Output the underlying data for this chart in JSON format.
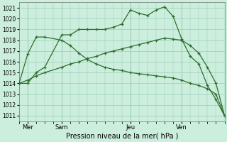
{
  "background_color": "#cceedd",
  "grid_color": "#99ccbb",
  "line_color": "#2d6e2d",
  "xlabel": "Pression niveau de la mer( hPa )",
  "ylim": [
    1010.5,
    1021.5
  ],
  "yticks": [
    1011,
    1012,
    1013,
    1014,
    1015,
    1016,
    1017,
    1018,
    1019,
    1020,
    1021
  ],
  "xlim": [
    0,
    24
  ],
  "day_labels": [
    "Mer",
    "Sam",
    "Jeu",
    "Ven"
  ],
  "day_positions": [
    1,
    5,
    13,
    19
  ],
  "line1_x": [
    0,
    1,
    2,
    3,
    5,
    6,
    7,
    8,
    9,
    10,
    11,
    12,
    13,
    14,
    15,
    16,
    17,
    18,
    19,
    20,
    21,
    22,
    23,
    24
  ],
  "line1_y": [
    1014,
    1014,
    1015,
    1015.5,
    1018.5,
    1018.5,
    1019,
    1019,
    1019,
    1019,
    1019.2,
    1019.5,
    1020.8,
    1020.5,
    1020.3,
    1020.8,
    1021.1,
    1020.2,
    1018.1,
    1016.5,
    1015.8,
    1013.8,
    1012.5,
    1011
  ],
  "line2_x": [
    0,
    1,
    2,
    3,
    5,
    6,
    7,
    8,
    9,
    10,
    11,
    12,
    13,
    14,
    15,
    16,
    17,
    18,
    19,
    20,
    21,
    22,
    23,
    24
  ],
  "line2_y": [
    1014,
    1016.7,
    1018.3,
    1018.3,
    1018.0,
    1017.5,
    1016.8,
    1016.2,
    1015.8,
    1015.5,
    1015.3,
    1015.2,
    1015.0,
    1014.9,
    1014.8,
    1014.7,
    1014.6,
    1014.5,
    1014.3,
    1014.0,
    1013.8,
    1013.5,
    1013.0,
    1011
  ],
  "line3_x": [
    0,
    1,
    2,
    3,
    5,
    6,
    7,
    8,
    9,
    10,
    11,
    12,
    13,
    14,
    15,
    16,
    17,
    18,
    19,
    20,
    21,
    22,
    23,
    24
  ],
  "line3_y": [
    1014,
    1014.3,
    1014.7,
    1015.0,
    1015.5,
    1015.8,
    1016.0,
    1016.3,
    1016.5,
    1016.8,
    1017.0,
    1017.2,
    1017.4,
    1017.6,
    1017.8,
    1018.0,
    1018.2,
    1018.1,
    1018.0,
    1017.5,
    1016.8,
    1015.5,
    1014.0,
    1011
  ]
}
